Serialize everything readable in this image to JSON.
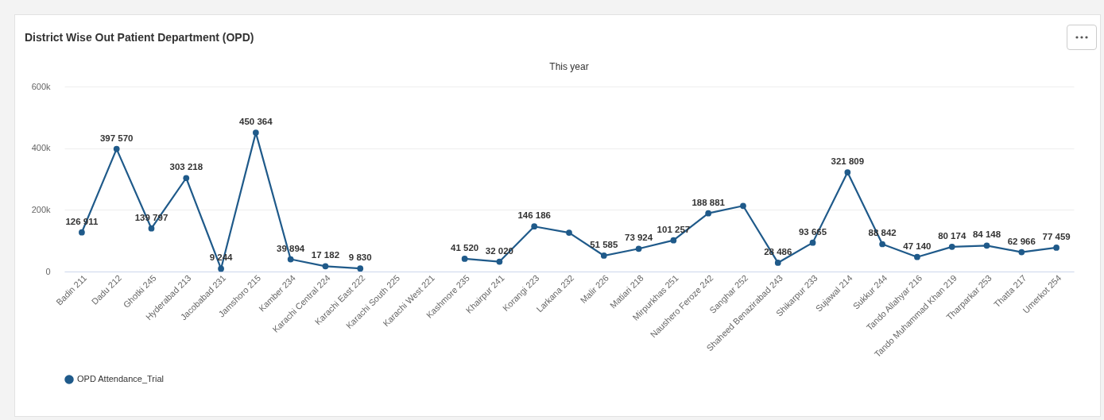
{
  "chart_data": {
    "type": "line",
    "title": "District Wise Out Patient Department (OPD)",
    "subtitle": "This year",
    "categories": [
      "Badin 211",
      "Dadu 212",
      "Ghotki 245",
      "Hyderabad 213",
      "Jacobabad 231",
      "Jamshoro 215",
      "Kamber 234",
      "Karachi Central 224",
      "Karachi East 222",
      "Karachi South 225",
      "Karachi West 221",
      "Kashmore 235",
      "Khairpur 241",
      "Korangi 223",
      "Larkana 232",
      "Malir 226",
      "Matiari 218",
      "Mirpurkhas 251",
      "Naushero Feroze 242",
      "Sanghar 252",
      "Shaheed Benazirabad 243",
      "Shikarpur 233",
      "Sujawal 214",
      "Sukkur 244",
      "Tando Allahyar 216",
      "Tando Muhammad Khan 219",
      "Tharparkar 253",
      "Thatta 217",
      "Umerkot 254"
    ],
    "series": [
      {
        "name": "OPD Attendance_Trial",
        "color": "#1f5a8a",
        "values": [
          126911,
          397570,
          139797,
          303218,
          9244,
          450364,
          39894,
          17182,
          9830,
          null,
          null,
          41520,
          32020,
          146186,
          126000,
          51585,
          73924,
          101257,
          188881,
          213000,
          28486,
          93665,
          321809,
          88842,
          47140,
          80174,
          84148,
          62966,
          77459
        ],
        "value_labels": [
          "126 911",
          "397 570",
          "139 797",
          "303 218",
          "9 244",
          "450 364",
          "39 894",
          "17 182",
          "9 830",
          null,
          null,
          "41 520",
          "32 020",
          "146 186",
          null,
          "51 585",
          "73 924",
          "101 257",
          "188 881",
          null,
          "28 486",
          "93 665",
          "321 809",
          "88 842",
          "47 140",
          "80 174",
          "84 148",
          "62 966",
          "77 459"
        ]
      }
    ],
    "ylim": [
      0,
      600000
    ],
    "yticks": [
      0,
      {
        "value": 200000,
        "label": "200k"
      },
      {
        "value": 400000,
        "label": "400k"
      },
      {
        "value": 600000,
        "label": "600k"
      }
    ],
    "grid": "y",
    "legend": "bottom",
    "marker": "circle",
    "line_style": "solid"
  }
}
